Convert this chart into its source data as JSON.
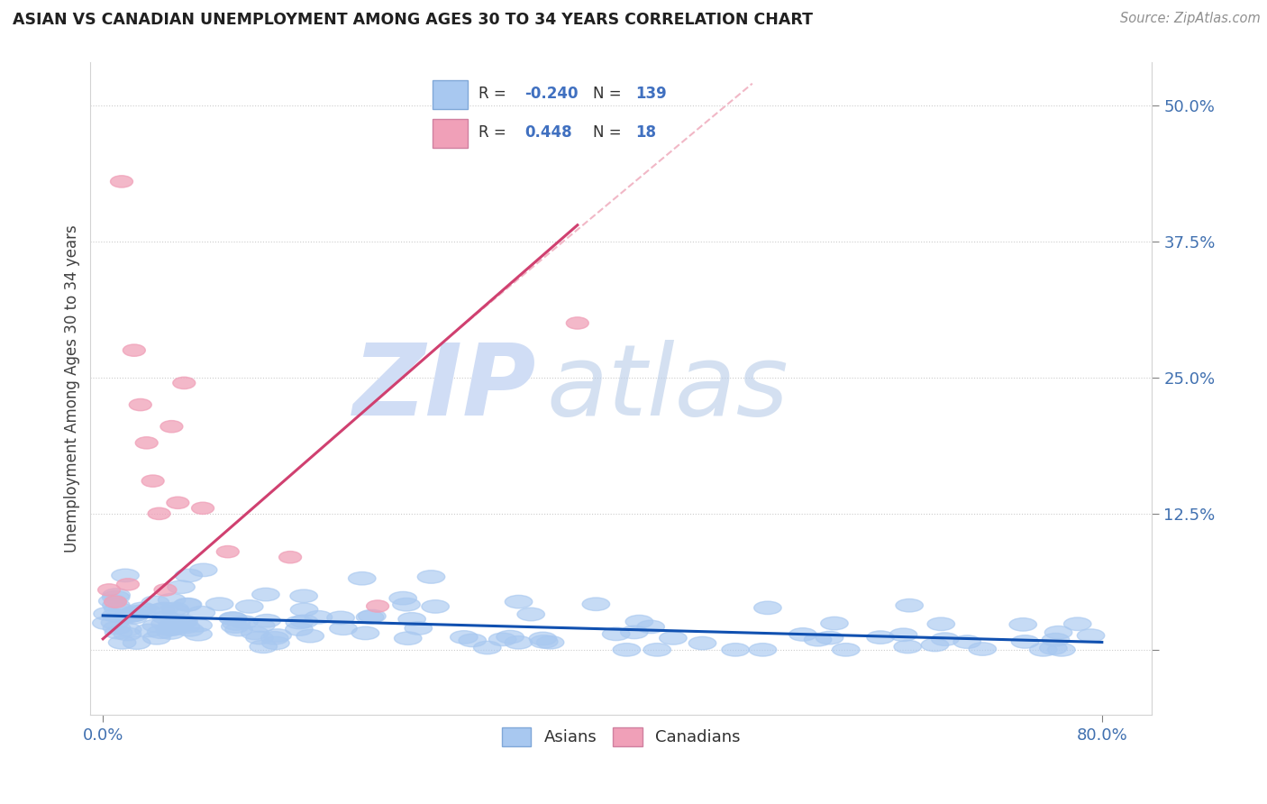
{
  "title": "ASIAN VS CANADIAN UNEMPLOYMENT AMONG AGES 30 TO 34 YEARS CORRELATION CHART",
  "source": "Source: ZipAtlas.com",
  "ylabel": "Unemployment Among Ages 30 to 34 years",
  "blue_color": "#A8C8F0",
  "pink_color": "#F0A0B8",
  "blue_line_color": "#1050B0",
  "pink_line_color": "#D04070",
  "dashed_line_color": "#F0B0C0",
  "background_color": "#FFFFFF",
  "legend_box_color": "#E8F0FF",
  "legend_box_edge": "#B0C0E0",
  "r1_val": "-0.240",
  "n1_val": "139",
  "r2_val": "0.448",
  "n2_val": "18",
  "canadian_x": [
    0.005,
    0.01,
    0.015,
    0.02,
    0.025,
    0.03,
    0.035,
    0.04,
    0.045,
    0.05,
    0.055,
    0.06,
    0.065,
    0.08,
    0.1,
    0.15,
    0.22,
    0.38
  ],
  "canadian_y": [
    0.055,
    0.044,
    0.43,
    0.06,
    0.275,
    0.225,
    0.19,
    0.155,
    0.125,
    0.055,
    0.205,
    0.135,
    0.245,
    0.13,
    0.09,
    0.085,
    0.04,
    0.3
  ],
  "pink_line_x0": 0.0,
  "pink_line_y0": 0.0,
  "pink_line_x1": 0.38,
  "pink_line_y1": 0.38,
  "blue_line_x0": 0.0,
  "blue_line_x1": 0.8,
  "xlim_min": -0.01,
  "xlim_max": 0.84,
  "ylim_min": -0.06,
  "ylim_max": 0.54,
  "ytick_vals": [
    0.0,
    0.125,
    0.25,
    0.375,
    0.5
  ],
  "ytick_labels": [
    "",
    "12.5%",
    "25.0%",
    "37.5%",
    "50.0%"
  ],
  "xtick_vals": [
    0.0,
    0.8
  ],
  "xtick_labels": [
    "0.0%",
    "80.0%"
  ]
}
